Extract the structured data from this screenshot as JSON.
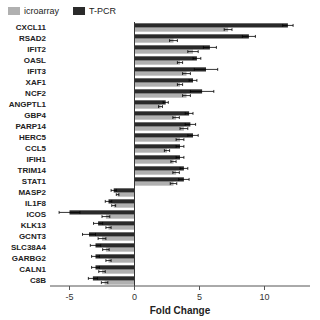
{
  "chart_data": {
    "type": "bar",
    "orientation": "horizontal",
    "xlabel": "Fold Change",
    "categories": [
      "CXCL11",
      "RSAD2",
      "IFIT2",
      "OASL",
      "IFIT3",
      "XAF1",
      "NCF2",
      "ANGPTL1",
      "GBP4",
      "PARP14",
      "HERC5",
      "CCL5",
      "IFIH1",
      "TRIM14",
      "STAT1",
      "MASP2",
      "IL1F8",
      "ICOS",
      "KLK13",
      "GCNT3",
      "SLC38A4",
      "GARBG2",
      "CALN1",
      "C8B"
    ],
    "series": [
      {
        "name": "icroarray",
        "color": "#b0b0b0",
        "values": [
          7.2,
          3.0,
          4.5,
          3.5,
          4.0,
          3.5,
          4.0,
          2.0,
          3.2,
          3.8,
          3.5,
          2.5,
          3.0,
          3.2,
          3.0,
          -1.3,
          -1.6,
          -2.2,
          -2.0,
          -2.5,
          -2.2,
          -2.0,
          -2.5,
          -2.3
        ],
        "errors": [
          0.3,
          0.3,
          0.4,
          0.2,
          0.3,
          0.2,
          0.3,
          0.15,
          0.25,
          0.3,
          0.3,
          0.2,
          0.2,
          0.25,
          0.25,
          0.1,
          0.15,
          0.3,
          0.2,
          0.3,
          0.25,
          0.2,
          0.25,
          0.25
        ]
      },
      {
        "name": "T-PCR",
        "color": "#2a2a2a",
        "values": [
          11.8,
          8.8,
          5.8,
          4.8,
          5.5,
          4.5,
          5.2,
          2.4,
          4.2,
          4.3,
          4.5,
          3.5,
          3.5,
          3.8,
          3.8,
          -1.6,
          -2.0,
          -5.0,
          -2.8,
          -3.5,
          -3.0,
          -3.0,
          -3.0,
          -3.2
        ],
        "errors": [
          0.4,
          0.5,
          0.5,
          0.3,
          0.9,
          0.3,
          0.9,
          0.2,
          0.3,
          0.4,
          0.4,
          0.3,
          0.3,
          0.3,
          0.4,
          0.2,
          0.25,
          0.8,
          0.35,
          0.5,
          0.4,
          0.3,
          0.3,
          0.35
        ]
      }
    ],
    "xlim": [
      -6.5,
      13.5
    ],
    "xticks": [
      -5,
      0,
      5,
      10
    ],
    "grid": false,
    "legend": "upper left"
  }
}
